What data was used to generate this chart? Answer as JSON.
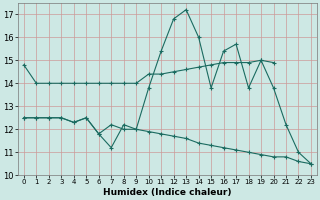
{
  "xlabel": "Humidex (Indice chaleur)",
  "background_color": "#cde8e4",
  "grid_color": "#cc9999",
  "line_color": "#1a6b60",
  "xlim": [
    -0.5,
    23.5
  ],
  "ylim": [
    10,
    17.5
  ],
  "yticks": [
    10,
    11,
    12,
    13,
    14,
    15,
    16,
    17
  ],
  "xticks": [
    0,
    1,
    2,
    3,
    4,
    5,
    6,
    7,
    8,
    9,
    10,
    11,
    12,
    13,
    14,
    15,
    16,
    17,
    18,
    19,
    20,
    21,
    22,
    23
  ],
  "series": [
    {
      "x": [
        0,
        1,
        2,
        3,
        4,
        5,
        6,
        7,
        8,
        9,
        10,
        11,
        12,
        13,
        14,
        15,
        16,
        17,
        18,
        19,
        20
      ],
      "y": [
        14.8,
        14.0,
        14.0,
        14.0,
        14.0,
        14.0,
        14.0,
        14.0,
        14.0,
        14.0,
        14.4,
        14.4,
        14.5,
        14.6,
        14.7,
        14.8,
        14.9,
        14.9,
        14.9,
        15.0,
        14.9
      ]
    },
    {
      "x": [
        0,
        1,
        2,
        3,
        4,
        5,
        6,
        7,
        8,
        9,
        10,
        11,
        12,
        13,
        14,
        15,
        16,
        17,
        18,
        19,
        20,
        21,
        22,
        23
      ],
      "y": [
        12.5,
        12.5,
        12.5,
        12.5,
        12.3,
        12.5,
        11.8,
        11.2,
        12.2,
        12.0,
        13.8,
        15.4,
        16.8,
        17.2,
        16.0,
        13.8,
        15.4,
        15.7,
        13.8,
        15.0,
        13.8,
        12.2,
        11.0,
        10.5
      ]
    },
    {
      "x": [
        0,
        1,
        2,
        3,
        4,
        5,
        6,
        7,
        8,
        9,
        10,
        11,
        12,
        13,
        14,
        15,
        16,
        17,
        18,
        19,
        20,
        21,
        22,
        23
      ],
      "y": [
        12.5,
        12.5,
        12.5,
        12.5,
        12.3,
        12.5,
        11.8,
        12.2,
        12.0,
        12.0,
        11.9,
        11.8,
        11.7,
        11.6,
        11.4,
        11.3,
        11.2,
        11.1,
        11.0,
        10.9,
        10.8,
        10.8,
        10.6,
        10.5
      ]
    }
  ]
}
